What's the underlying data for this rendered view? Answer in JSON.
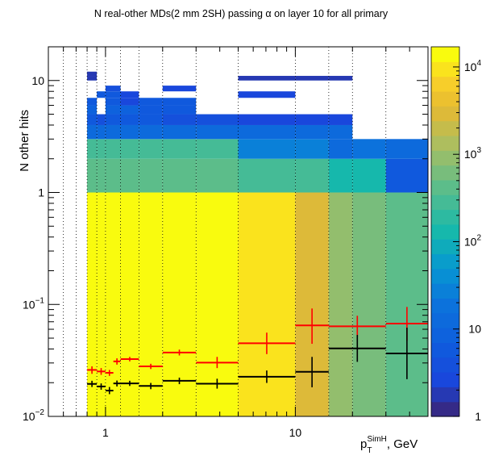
{
  "chart_data": {
    "type": "heatmap",
    "title": "N real-other MDs(2 mm 2SH) passing α on layer 10 for all primary",
    "xlabel": {
      "main": "p",
      "sub": "T",
      "sup": "SimH",
      "unit": ", GeV"
    },
    "ylabel": "N other hits",
    "x_scale": "log",
    "y_scale": "log",
    "xlim": [
      0.5,
      50
    ],
    "ylim": [
      0.01,
      20
    ],
    "z_scale": "log",
    "zlim": [
      1,
      17000
    ],
    "x_tick_labels": [
      {
        "value": 1,
        "label": "1"
      },
      {
        "value": 10,
        "label": "10"
      }
    ],
    "y_tick_labels": [
      {
        "value": 0.01,
        "base": "10",
        "exp": "−2"
      },
      {
        "value": 0.1,
        "base": "10",
        "exp": "−1"
      },
      {
        "value": 1,
        "base": "1",
        "exp": ""
      },
      {
        "value": 10,
        "base": "10",
        "exp": ""
      }
    ],
    "z_tick_labels": [
      {
        "value": 1,
        "base": "1",
        "exp": ""
      },
      {
        "value": 10,
        "base": "10",
        "exp": ""
      },
      {
        "value": 100,
        "base": "10",
        "exp": "2"
      },
      {
        "value": 1000,
        "base": "10",
        "exp": "3"
      },
      {
        "value": 10000,
        "base": "10",
        "exp": "4"
      }
    ],
    "x_bin_edges": [
      0.5,
      0.6,
      0.7,
      0.8,
      0.9,
      1.0,
      1.2,
      1.5,
      2,
      3,
      5,
      10,
      15,
      20,
      30,
      50
    ],
    "y_bins": [
      {
        "lo": 0.01,
        "hi": 1,
        "values": [
          0,
          0,
          0,
          12000,
          13000,
          14000,
          15000,
          15000,
          14500,
          12000,
          9000,
          3500,
          1000,
          600,
          400
        ]
      },
      {
        "lo": 1,
        "hi": 2,
        "values": [
          0,
          0,
          0,
          350,
          350,
          350,
          350,
          350,
          350,
          350,
          300,
          250,
          150,
          150,
          5
        ]
      },
      {
        "lo": 2,
        "hi": 3,
        "values": [
          0,
          0,
          0,
          250,
          250,
          250,
          250,
          250,
          300,
          250,
          30,
          25,
          15,
          20,
          12
        ]
      },
      {
        "lo": 3,
        "hi": 4,
        "values": [
          0,
          0,
          0,
          15,
          15,
          15,
          15,
          15,
          15,
          15,
          15,
          15,
          15,
          0,
          0
        ]
      },
      {
        "lo": 4,
        "hi": 5,
        "values": [
          0,
          0,
          0,
          6,
          4,
          6,
          5,
          5,
          4,
          4,
          3,
          3,
          3,
          0,
          0
        ]
      },
      {
        "lo": 5,
        "hi": 6,
        "values": [
          0,
          0,
          0,
          8,
          0,
          8,
          8,
          6,
          6,
          0,
          0,
          0,
          0,
          0,
          0
        ]
      },
      {
        "lo": 6,
        "hi": 7,
        "values": [
          0,
          0,
          0,
          6,
          0,
          6,
          3,
          6,
          6,
          0,
          0,
          0,
          0,
          0,
          0
        ]
      },
      {
        "lo": 7,
        "hi": 8,
        "values": [
          0,
          0,
          0,
          0,
          5,
          5,
          3,
          0,
          0,
          0,
          3,
          0,
          0,
          0,
          0
        ]
      },
      {
        "lo": 8,
        "hi": 9,
        "values": [
          0,
          0,
          0,
          0,
          0,
          4,
          0,
          0,
          3,
          0,
          0,
          0,
          0,
          0,
          0
        ]
      },
      {
        "lo": 9,
        "hi": 10,
        "values": [
          0,
          0,
          0,
          0,
          0,
          0,
          0,
          0,
          0,
          0,
          0,
          0,
          0,
          0,
          0
        ]
      },
      {
        "lo": 10,
        "hi": 11,
        "values": [
          0,
          0,
          0,
          2,
          0,
          0,
          0,
          0,
          0,
          0,
          2,
          2,
          2,
          0,
          0
        ]
      },
      {
        "lo": 11,
        "hi": 12,
        "values": [
          0,
          0,
          0,
          2,
          0,
          0,
          0,
          0,
          0,
          0,
          0,
          0,
          0,
          0,
          0
        ]
      }
    ],
    "series": [
      {
        "color": "#ff0000",
        "points": [
          {
            "xlo": 0.8,
            "xhi": 0.9,
            "y": 0.026,
            "ylo": 0.024,
            "yhi": 0.028
          },
          {
            "xlo": 0.9,
            "xhi": 1.0,
            "y": 0.0252,
            "ylo": 0.0235,
            "yhi": 0.027
          },
          {
            "xlo": 1.0,
            "xhi": 1.1,
            "y": 0.0245,
            "ylo": 0.023,
            "yhi": 0.026
          },
          {
            "xlo": 1.1,
            "xhi": 1.2,
            "y": 0.031,
            "ylo": 0.029,
            "yhi": 0.033
          },
          {
            "xlo": 1.2,
            "xhi": 1.5,
            "y": 0.0325,
            "ylo": 0.031,
            "yhi": 0.034
          },
          {
            "xlo": 1.5,
            "xhi": 2,
            "y": 0.028,
            "ylo": 0.0265,
            "yhi": 0.0295
          },
          {
            "xlo": 2,
            "xhi": 3,
            "y": 0.0372,
            "ylo": 0.035,
            "yhi": 0.0395
          },
          {
            "xlo": 3,
            "xhi": 5,
            "y": 0.0302,
            "ylo": 0.027,
            "yhi": 0.034
          },
          {
            "xlo": 5,
            "xhi": 10,
            "y": 0.045,
            "ylo": 0.036,
            "yhi": 0.056
          },
          {
            "xlo": 10,
            "xhi": 15,
            "y": 0.065,
            "ylo": 0.0445,
            "yhi": 0.092
          },
          {
            "xlo": 15,
            "xhi": 30,
            "y": 0.0638,
            "ylo": 0.0513,
            "yhi": 0.0792
          },
          {
            "xlo": 30,
            "xhi": 50,
            "y": 0.0675,
            "ylo": 0.0475,
            "yhi": 0.095
          }
        ]
      },
      {
        "color": "#000000",
        "points": [
          {
            "xlo": 0.8,
            "xhi": 0.9,
            "y": 0.0195,
            "ylo": 0.0183,
            "yhi": 0.0208
          },
          {
            "xlo": 0.9,
            "xhi": 1.0,
            "y": 0.0185,
            "ylo": 0.0173,
            "yhi": 0.0197
          },
          {
            "xlo": 1.0,
            "xhi": 1.1,
            "y": 0.017,
            "ylo": 0.0158,
            "yhi": 0.0183
          },
          {
            "xlo": 1.1,
            "xhi": 1.2,
            "y": 0.0197,
            "ylo": 0.0185,
            "yhi": 0.0209
          },
          {
            "xlo": 1.2,
            "xhi": 1.5,
            "y": 0.0197,
            "ylo": 0.0187,
            "yhi": 0.0208
          },
          {
            "xlo": 1.5,
            "xhi": 2,
            "y": 0.0187,
            "ylo": 0.0175,
            "yhi": 0.0199
          },
          {
            "xlo": 2,
            "xhi": 3,
            "y": 0.0208,
            "ylo": 0.0194,
            "yhi": 0.0222
          },
          {
            "xlo": 3,
            "xhi": 5,
            "y": 0.0196,
            "ylo": 0.0177,
            "yhi": 0.0217
          },
          {
            "xlo": 5,
            "xhi": 10,
            "y": 0.0226,
            "ylo": 0.0199,
            "yhi": 0.0257
          },
          {
            "xlo": 10,
            "xhi": 15,
            "y": 0.025,
            "ylo": 0.0182,
            "yhi": 0.034
          },
          {
            "xlo": 15,
            "xhi": 30,
            "y": 0.0405,
            "ylo": 0.0307,
            "yhi": 0.0534
          },
          {
            "xlo": 30,
            "xhi": 50,
            "y": 0.0365,
            "ylo": 0.0215,
            "yhi": 0.062
          }
        ]
      }
    ],
    "grid": {
      "x": true,
      "y": false,
      "style": "dotted"
    },
    "colorbar": "right",
    "legend": "none"
  }
}
